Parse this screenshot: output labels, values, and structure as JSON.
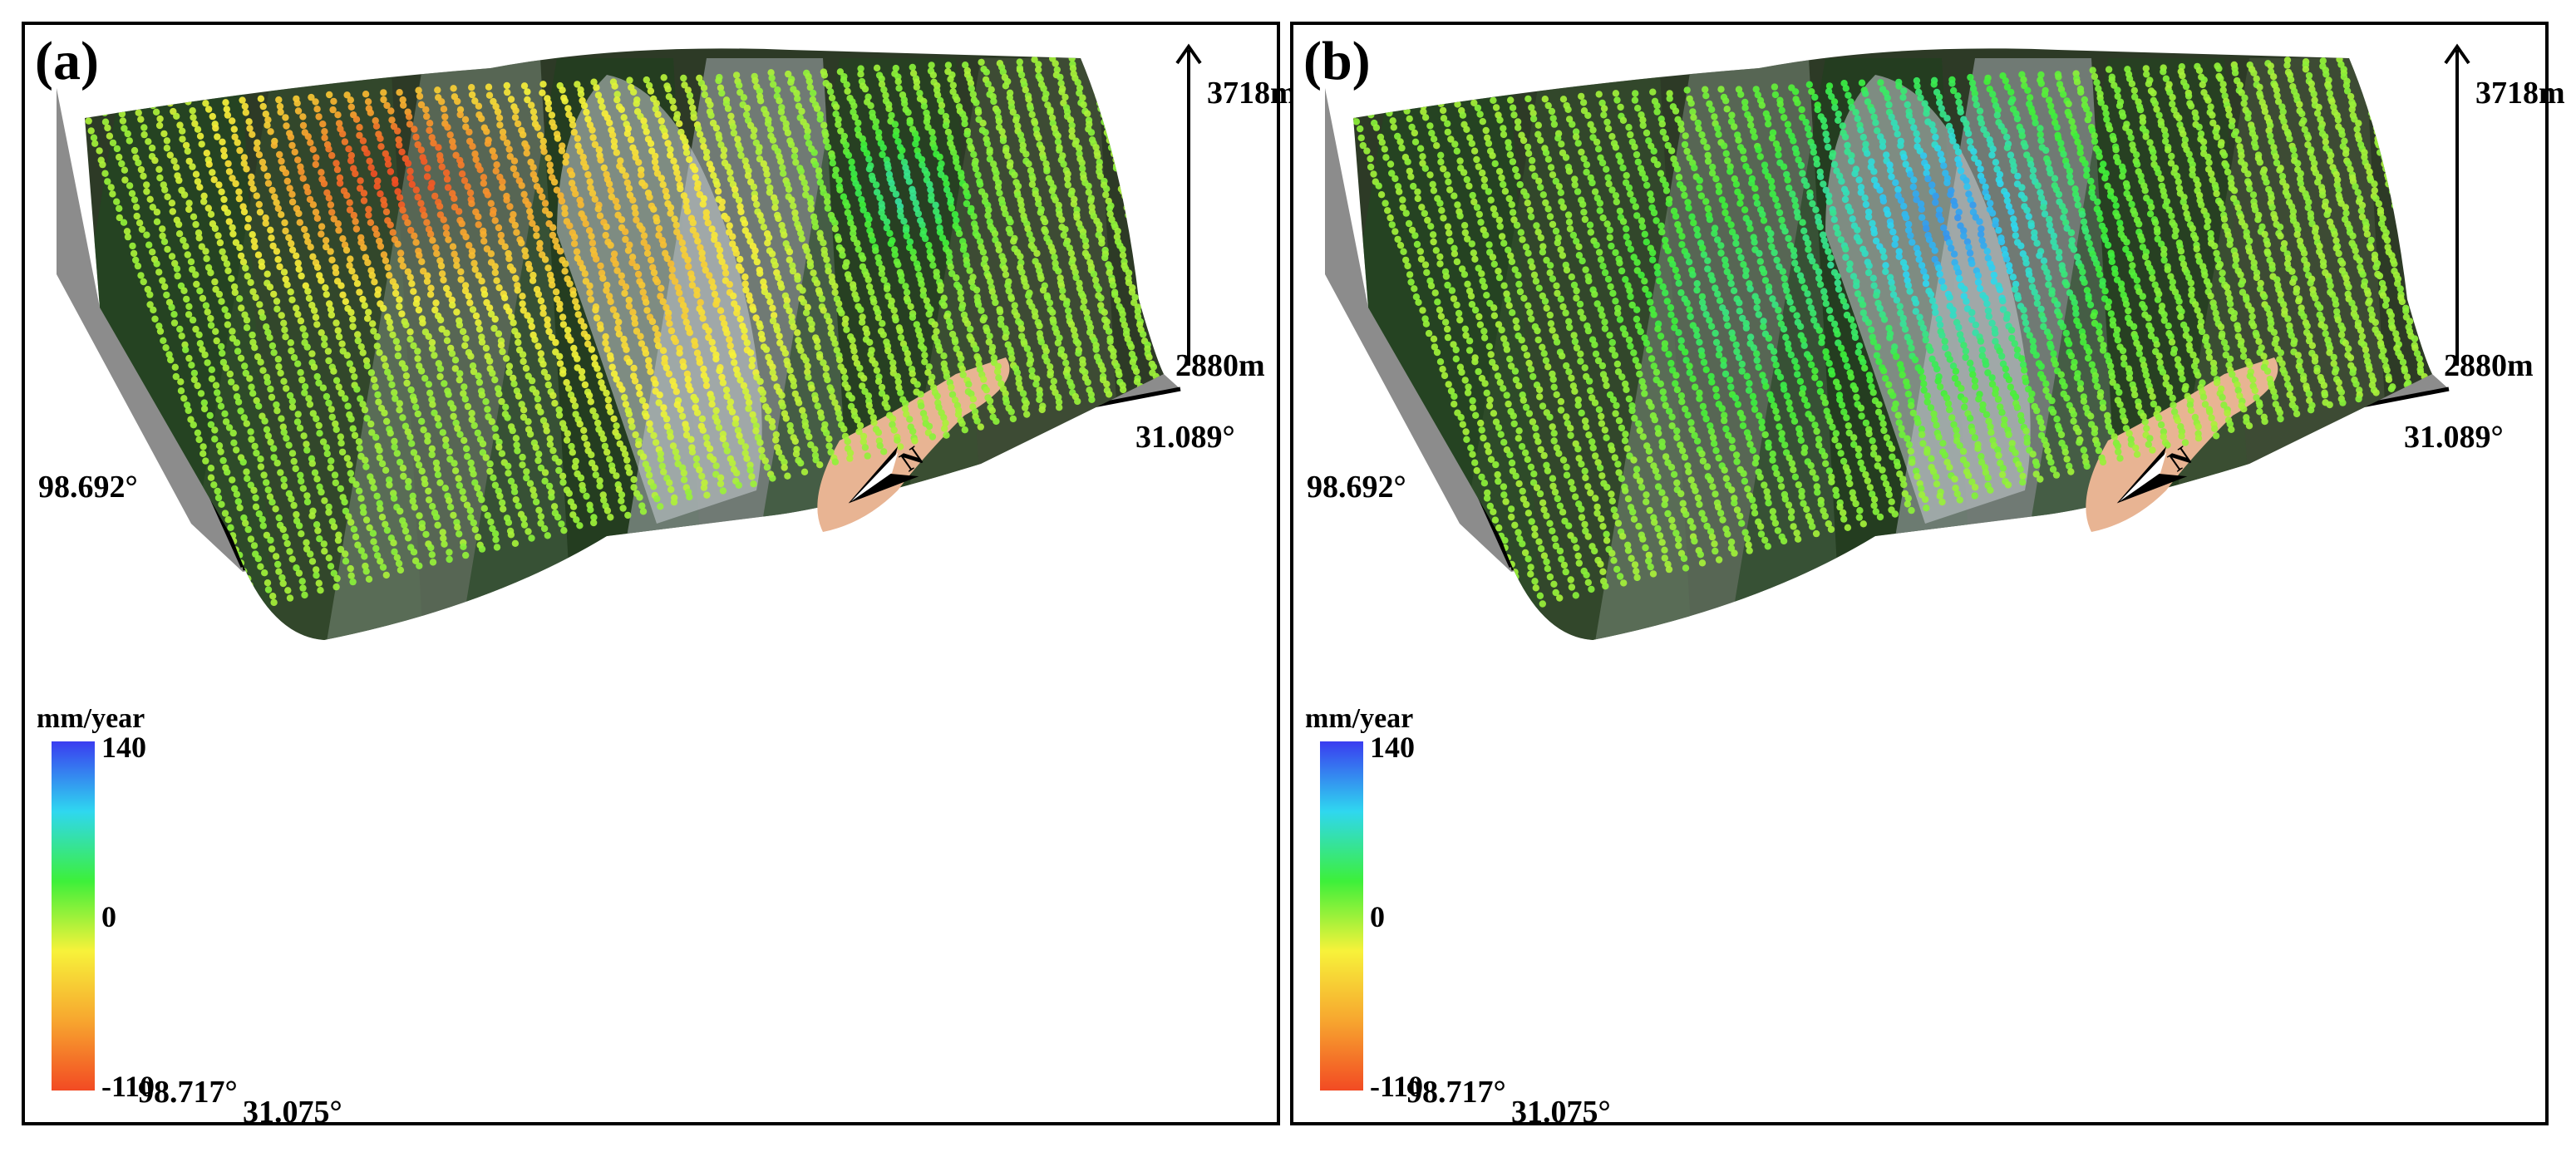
{
  "panels": [
    {
      "id": "a",
      "label": "(a)"
    },
    {
      "id": "b",
      "label": "(b)"
    }
  ],
  "elevation": {
    "top": "3718m",
    "bottom": "2880m"
  },
  "coords": {
    "lon_upper": "98.692°",
    "lon_lower": "98.717°",
    "lat_front": "31.075°",
    "lat_right": "31.089°"
  },
  "north": "N",
  "colorbar": {
    "unit": "mm/year",
    "max": "140",
    "zero": "0",
    "min": "-110",
    "colors": [
      "#3a3cf0",
      "#2fd7f0",
      "#3df03a",
      "#f7f23a",
      "#f7a62f",
      "#f24a23"
    ]
  }
}
